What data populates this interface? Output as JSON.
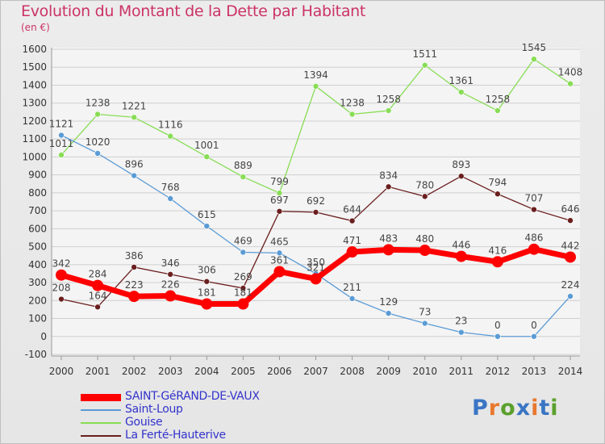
{
  "header": {
    "title": "Evolution du Montant de la Dette par Habitant",
    "unit": "(en €)"
  },
  "colors": {
    "title": "#cc3366",
    "grid": "#cfcfcf",
    "axis": "#999999",
    "legend_text": "#3333cc"
  },
  "logo": {
    "text": "Proxiti",
    "letter_colors": [
      "#3a75c4",
      "#e8782d",
      "#5aa02c",
      "#3a75c4",
      "#e8782d",
      "#3a75c4",
      "#5aa02c"
    ]
  },
  "chart_data": {
    "type": "line",
    "title": "Evolution du Montant de la Dette par Habitant",
    "subtitle": "(en €)",
    "x": [
      "2000",
      "2001",
      "2002",
      "2003",
      "2004",
      "2005",
      "2006",
      "2007",
      "2008",
      "2009",
      "2010",
      "2011",
      "2012",
      "2013",
      "2014"
    ],
    "yticks": [
      -100,
      0,
      100,
      200,
      300,
      400,
      500,
      600,
      700,
      800,
      900,
      1000,
      1100,
      1200,
      1300,
      1400,
      1500,
      1600
    ],
    "ylim": [
      -100,
      1600
    ],
    "grid": true,
    "legend_position": "bottom-left",
    "series": [
      {
        "name": "La Ferté-Hauterive",
        "color": "#6b1e1e",
        "width": 1.3,
        "marker": 3.5,
        "values": [
          208,
          164,
          386,
          346,
          306,
          269,
          697,
          692,
          644,
          834,
          780,
          893,
          794,
          707,
          646
        ]
      },
      {
        "name": "Gouise",
        "color": "#88dd55",
        "width": 1.3,
        "marker": 3.5,
        "values": [
          1011,
          1238,
          1221,
          1116,
          1001,
          889,
          799,
          1394,
          1238,
          1258,
          1511,
          1361,
          1258,
          1545,
          1408
        ]
      },
      {
        "name": "Saint-Loup",
        "color": "#5b9bd5",
        "width": 1.3,
        "marker": 3.5,
        "values": [
          1121,
          1020,
          896,
          768,
          615,
          469,
          465,
          350,
          211,
          129,
          73,
          23,
          0,
          0,
          224
        ]
      },
      {
        "name": "SAINT-GéRAND-DE-VAUX",
        "color": "#ff0000",
        "width": 7,
        "marker": 7,
        "values": [
          342,
          284,
          223,
          226,
          181,
          181,
          361,
          321,
          471,
          483,
          480,
          446,
          416,
          486,
          442
        ]
      }
    ]
  }
}
